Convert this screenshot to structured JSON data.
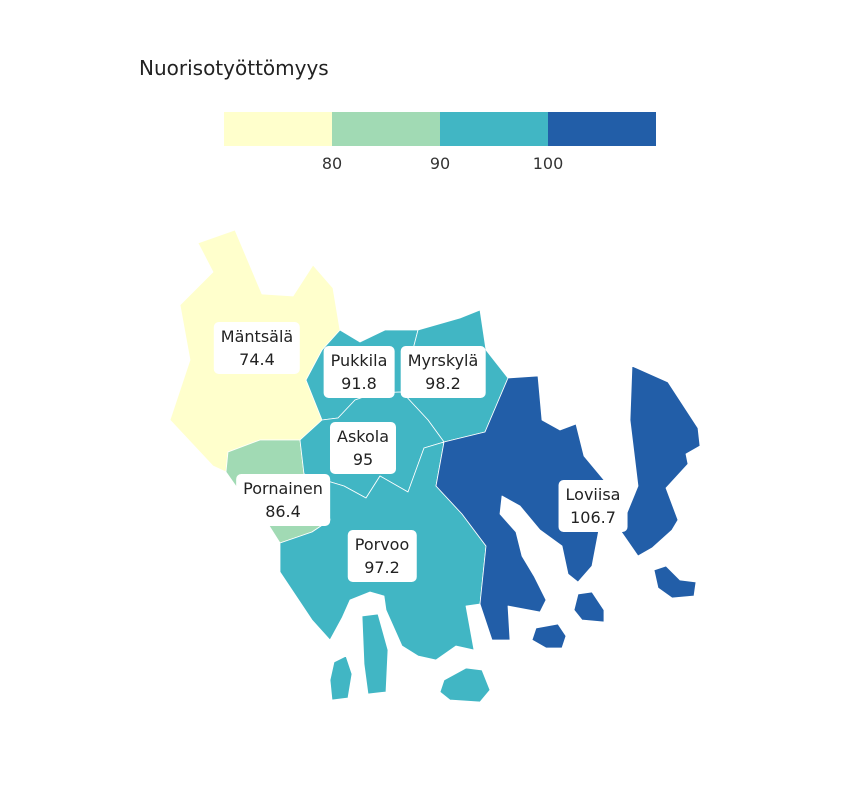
{
  "title": "Nuorisotyöttömyys",
  "legend": {
    "colors": [
      "#ffffcc",
      "#a1dab4",
      "#41b6c4",
      "#225ea8"
    ],
    "ticks": [
      "80",
      "90",
      "100"
    ]
  },
  "regions": [
    {
      "name": "Mäntsälä",
      "value": "74.4",
      "color": "#ffffcc"
    },
    {
      "name": "Pornainen",
      "value": "86.4",
      "color": "#a1dab4"
    },
    {
      "name": "Pukkila",
      "value": "91.8",
      "color": "#41b6c4"
    },
    {
      "name": "Askola",
      "value": "95",
      "color": "#41b6c4"
    },
    {
      "name": "Porvoo",
      "value": "97.2",
      "color": "#41b6c4"
    },
    {
      "name": "Myrskylä",
      "value": "98.2",
      "color": "#41b6c4"
    },
    {
      "name": "Loviisa",
      "value": "106.7",
      "color": "#225ea8"
    }
  ]
}
